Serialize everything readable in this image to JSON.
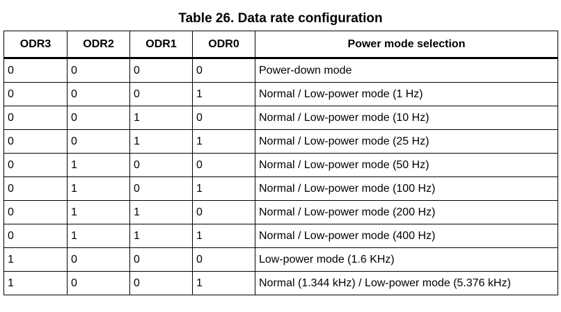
{
  "table": {
    "caption": "Table 26. Data rate configuration",
    "headers": [
      "ODR3",
      "ODR2",
      "ODR1",
      "ODR0",
      "Power mode selection"
    ],
    "rows": [
      [
        "0",
        "0",
        "0",
        "0",
        "Power-down mode"
      ],
      [
        "0",
        "0",
        "0",
        "1",
        "Normal / Low-power mode (1 Hz)"
      ],
      [
        "0",
        "0",
        "1",
        "0",
        "Normal / Low-power mode (10 Hz)"
      ],
      [
        "0",
        "0",
        "1",
        "1",
        "Normal / Low-power mode (25 Hz)"
      ],
      [
        "0",
        "1",
        "0",
        "0",
        "Normal / Low-power mode (50 Hz)"
      ],
      [
        "0",
        "1",
        "0",
        "1",
        "Normal / Low-power mode (100 Hz)"
      ],
      [
        "0",
        "1",
        "1",
        "0",
        "Normal / Low-power mode (200 Hz)"
      ],
      [
        "0",
        "1",
        "1",
        "1",
        "Normal / Low-power mode (400 Hz)"
      ],
      [
        "1",
        "0",
        "0",
        "0",
        "Low-power mode (1.6 KHz)"
      ],
      [
        "1",
        "0",
        "0",
        "1",
        "Normal (1.344 kHz) / Low-power mode (5.376 kHz)"
      ]
    ]
  }
}
